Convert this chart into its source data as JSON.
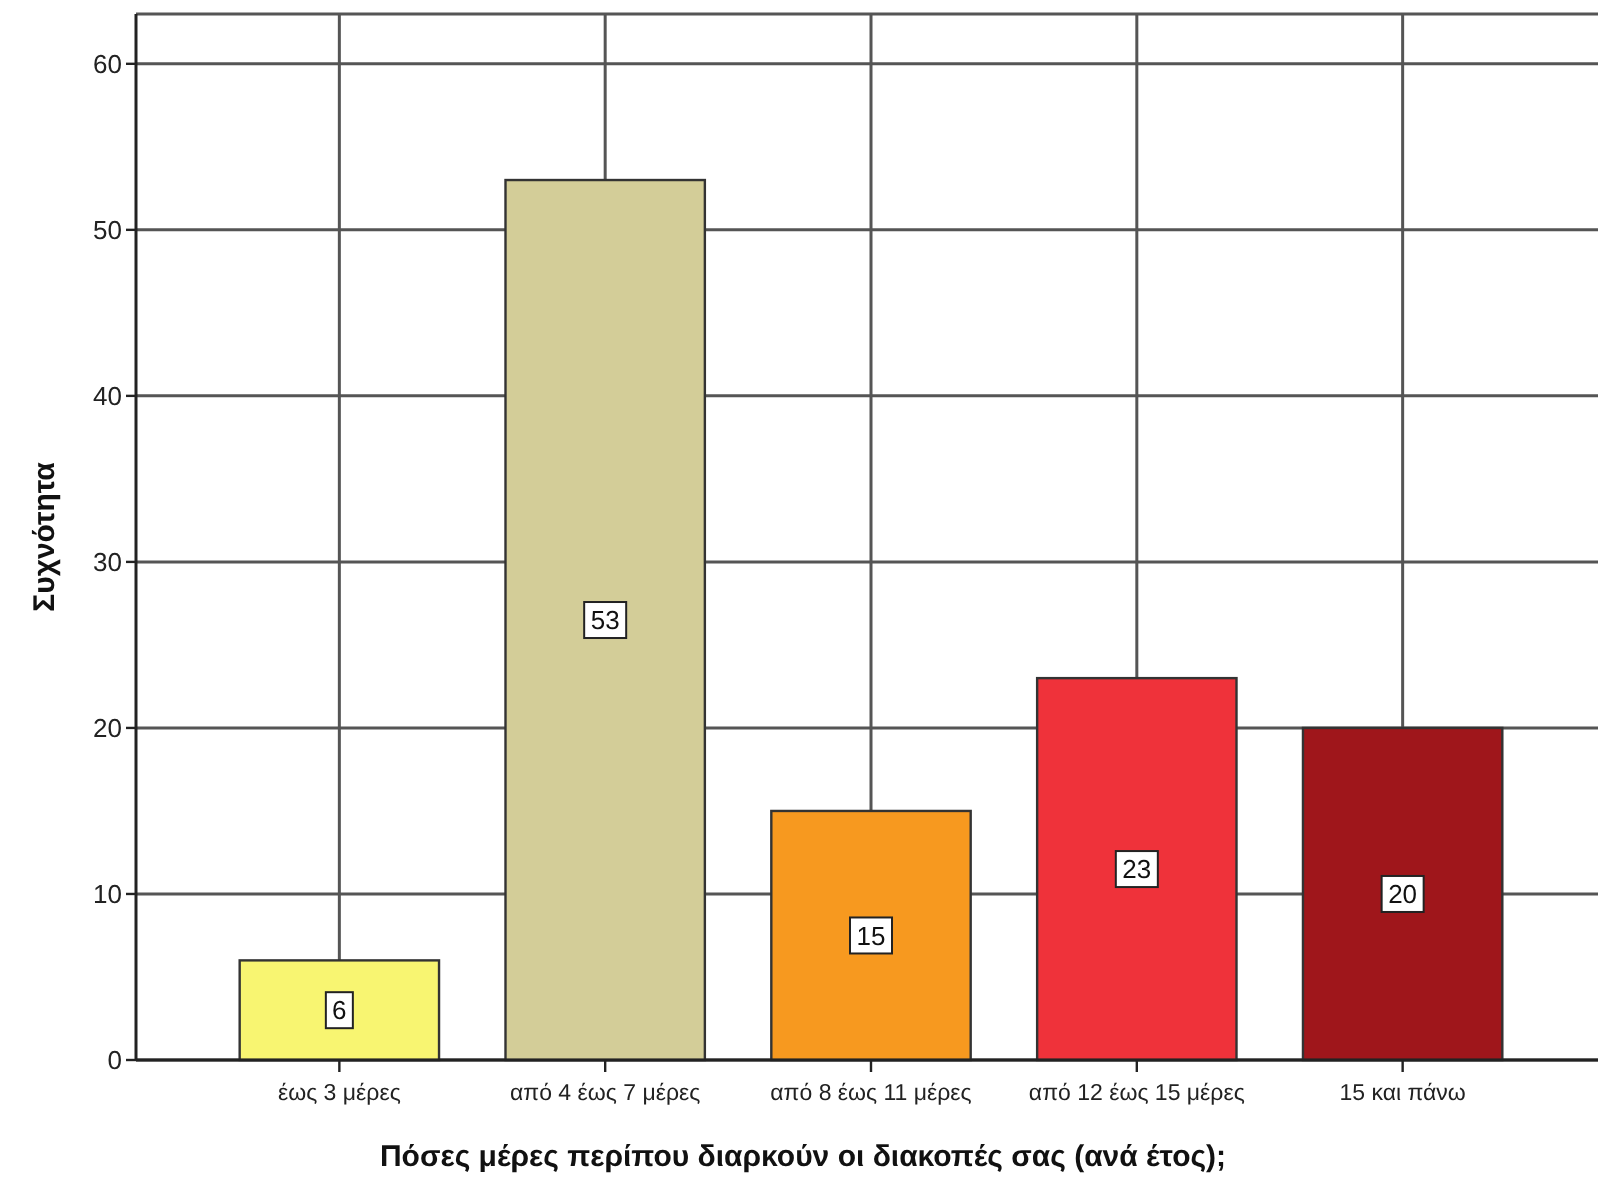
{
  "chart_data": {
    "type": "bar",
    "xlabel": "Πόσες μέρες περίπου διαρκούν οι διακοπές σας (ανά έτος);",
    "ylabel": "Συχνότητα",
    "categories": [
      "έως 3 μέρες",
      "από 4 έως 7 μέρες",
      "από 8 έως 11 μέρες",
      "από 12 έως 15 μέρες",
      "15 και πάνω"
    ],
    "values": [
      6,
      53,
      15,
      23,
      20
    ],
    "colors": [
      "#f8f571",
      "#d3cd98",
      "#f7991f",
      "#ef323a",
      "#9f161b"
    ],
    "ylim": [
      0,
      63
    ],
    "yticks": [
      0,
      10,
      20,
      30,
      40,
      50,
      60
    ],
    "grid": true,
    "data_labels": true
  }
}
